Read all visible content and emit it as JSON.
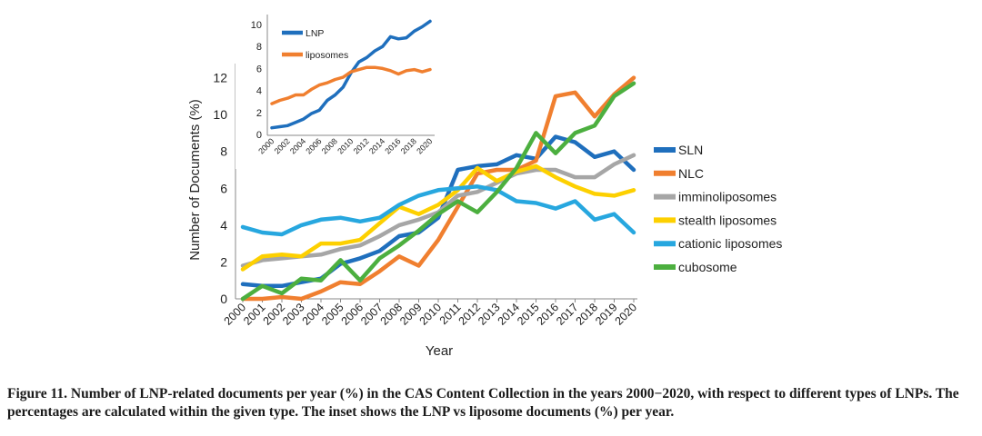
{
  "chart_data": [
    {
      "type": "line",
      "xlabel": "Year",
      "ylabel": "Number of Documents (%)",
      "ylim": [
        0,
        14
      ],
      "yticks": [
        0,
        2,
        4,
        6,
        8,
        10,
        12
      ],
      "x": [
        "2000",
        "2001",
        "2002",
        "2003",
        "2004",
        "2005",
        "2006",
        "2007",
        "2008",
        "2009",
        "2010",
        "2011",
        "2012",
        "2013",
        "2014",
        "2015",
        "2016",
        "2017",
        "2018",
        "2019",
        "2020"
      ],
      "legend_position": "right",
      "grid": false,
      "series": [
        {
          "name": "SLN",
          "color": "#1f6fbd",
          "values": [
            0.8,
            0.7,
            0.7,
            0.9,
            1.1,
            1.9,
            2.2,
            2.6,
            3.4,
            3.6,
            4.4,
            7.0,
            7.2,
            7.3,
            7.8,
            7.6,
            8.8,
            8.5,
            7.7,
            8.0,
            7.0
          ]
        },
        {
          "name": "NLC",
          "color": "#f07f2f",
          "values": [
            0.0,
            0.0,
            0.1,
            0.0,
            0.4,
            0.9,
            0.8,
            1.5,
            2.3,
            1.8,
            3.2,
            5.0,
            6.8,
            7.0,
            7.0,
            7.5,
            11.0,
            11.2,
            9.9,
            11.1,
            12.0
          ]
        },
        {
          "name": "imminoliposomes",
          "color": "#a6a6a6",
          "values": [
            1.8,
            2.1,
            2.2,
            2.3,
            2.4,
            2.7,
            2.9,
            3.4,
            4.0,
            4.3,
            4.7,
            5.6,
            5.8,
            6.3,
            6.8,
            7.0,
            7.0,
            6.6,
            6.6,
            7.3,
            7.8
          ]
        },
        {
          "name": "stealth liposomes",
          "color": "#fdd000",
          "values": [
            1.6,
            2.3,
            2.4,
            2.3,
            3.0,
            3.0,
            3.2,
            4.1,
            5.0,
            4.6,
            5.1,
            5.9,
            7.1,
            6.4,
            6.9,
            7.2,
            6.6,
            6.1,
            5.7,
            5.6,
            5.9
          ]
        },
        {
          "name": "cationic liposomes",
          "color": "#27a7df",
          "values": [
            3.9,
            3.6,
            3.5,
            4.0,
            4.3,
            4.4,
            4.2,
            4.4,
            5.1,
            5.6,
            5.9,
            6.0,
            6.1,
            5.9,
            5.3,
            5.2,
            4.9,
            5.3,
            4.3,
            4.6,
            3.6
          ]
        },
        {
          "name": "cubosome",
          "color": "#4caf3f",
          "values": [
            0.0,
            0.7,
            0.3,
            1.1,
            1.0,
            2.1,
            1.0,
            2.2,
            2.9,
            3.7,
            4.6,
            5.3,
            4.7,
            5.8,
            7.1,
            9.0,
            7.9,
            9.0,
            9.4,
            11.0,
            11.7
          ]
        }
      ]
    },
    {
      "type": "line",
      "role": "inset",
      "ylim": [
        0,
        10.5
      ],
      "yticks": [
        0,
        2,
        4,
        6,
        8,
        10
      ],
      "x": [
        "2000",
        "2001",
        "2002",
        "2003",
        "2004",
        "2005",
        "2006",
        "2007",
        "2008",
        "2009",
        "2010",
        "2011",
        "2012",
        "2013",
        "2014",
        "2015",
        "2016",
        "2017",
        "2018",
        "2019",
        "2020"
      ],
      "xticks": [
        "2000",
        "2002",
        "2004",
        "2006",
        "2008",
        "2010",
        "2012",
        "2014",
        "2016",
        "2018",
        "2020"
      ],
      "legend_position": "top-left",
      "series": [
        {
          "name": "LNP",
          "color": "#1f6fbd",
          "values": [
            0.6,
            0.7,
            0.8,
            1.1,
            1.4,
            1.9,
            2.2,
            3.1,
            3.6,
            4.3,
            5.6,
            6.6,
            7.0,
            7.6,
            8.0,
            8.9,
            8.7,
            8.8,
            9.4,
            9.8,
            10.3
          ]
        },
        {
          "name": "liposomes",
          "color": "#f07f2f",
          "values": [
            2.8,
            3.1,
            3.3,
            3.6,
            3.6,
            4.1,
            4.5,
            4.7,
            5.0,
            5.2,
            5.7,
            5.9,
            6.1,
            6.1,
            6.0,
            5.8,
            5.5,
            5.8,
            5.9,
            5.7,
            5.9
          ]
        }
      ]
    }
  ],
  "caption": {
    "label": "Figure 11.",
    "text": "Number of LNP-related documents per year (%) in the CAS Content Collection in the years 2000−2020, with respect to different types of LNPs. The percentages are calculated within the given type. The inset shows the LNP vs liposome documents (%) per year."
  }
}
